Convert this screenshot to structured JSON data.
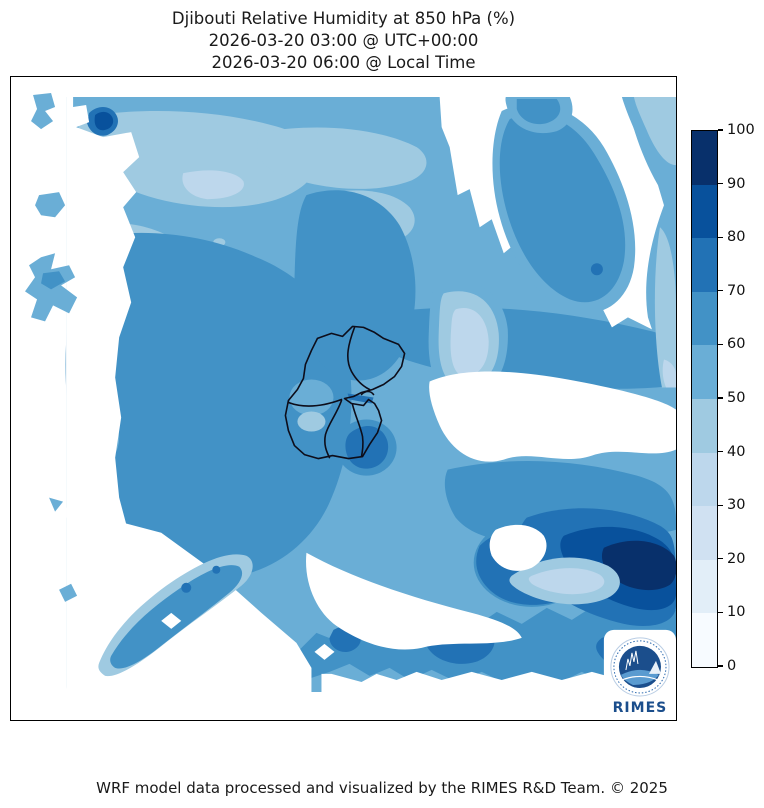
{
  "title": {
    "line1": "Djibouti Relative Humidity at 850 hPa (%)",
    "line2": "2026-03-20 03:00 @ UTC+00:00",
    "line3": "2026-03-20 06:00 @ Local Time"
  },
  "footer": {
    "text": "WRF model data processed and visualized by the RIMES R&D Team. © 2025"
  },
  "logo": {
    "text": "RIMES"
  },
  "colorbar": {
    "min": 0,
    "max": 100,
    "ticks": [
      0,
      10,
      20,
      30,
      40,
      50,
      60,
      70,
      80,
      90,
      100
    ],
    "colors_low_to_high": [
      "#f7fbff",
      "#e2eef8",
      "#d0e1f2",
      "#bdd7ec",
      "#9fcae1",
      "#6aaed6",
      "#4292c6",
      "#2272b5",
      "#08519c",
      "#08306b"
    ]
  },
  "palette": {
    "c0": "#f7fbff",
    "c10": "#e2eef8",
    "c20": "#d0e1f2",
    "c30": "#bdd7ec",
    "c40": "#9fcae1",
    "c50": "#6aaed6",
    "c60": "#4292c6",
    "c70": "#2272b5",
    "c80": "#08519c",
    "c90": "#08306b",
    "border_line": "#0d0d1a",
    "logo_navy": "#1b4e8c",
    "logo_wave": "#5a9bd0"
  },
  "chart_data": {
    "type": "heatmap",
    "variable": "Relative Humidity",
    "pressure_level_hPa": 850,
    "units": "%",
    "region": "Djibouti",
    "time_utc": "2026-03-20 03:00 @ UTC+00:00",
    "time_local": "2026-03-20 06:00 @ Local Time",
    "contour_levels": [
      0,
      10,
      20,
      30,
      40,
      50,
      60,
      70,
      80,
      90,
      100
    ],
    "colormap": "Blues (discrete, 10 bins)",
    "colorbar_range": [
      0,
      100
    ],
    "colorbar_position": "right-vertical",
    "grid": false,
    "value_summary": {
      "dominant_range_pct": [
        50,
        70
      ],
      "secondary_light_patches_pct": [
        30,
        50
      ],
      "maximum_pocket_pct": [
        90,
        100
      ],
      "maximum_pocket_location": "southeast part of the domain near the right edge",
      "high_band_pct_70_80": "northeast diagonal band, small pocket south of the Gulf of Tadjoura, bottom band patches",
      "unshaded_white_areas": "west margin, northeast sector, east-central wedge, southwest corner and bottom strip"
    },
    "overlays": [
      "Djibouti national and regional boundaries (black outlines)",
      "RIMES logo bottom-right"
    ]
  }
}
